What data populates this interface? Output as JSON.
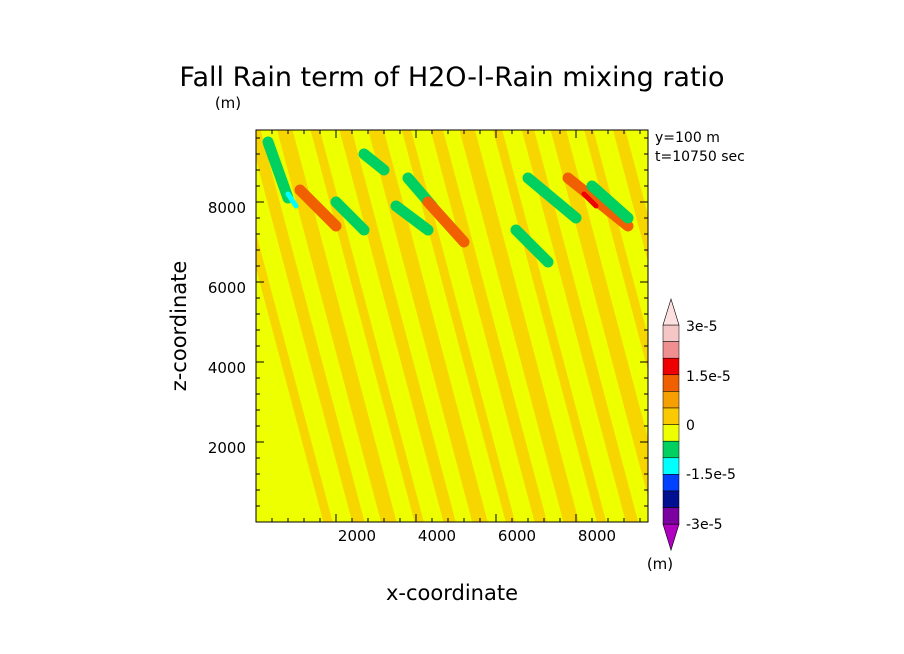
{
  "chart_data": {
    "type": "heatmap",
    "title": "Fall Rain term of H2O-l-Rain mixing ratio",
    "unit_label_top": "(m)",
    "unit_label_colorbar": "(m)",
    "annotations": [
      "y=100 m",
      "t=10750 sec"
    ],
    "xlabel": "x-coordinate",
    "ylabel": "z-coordinate",
    "x_ticks": [
      "2000",
      "4000",
      "6000",
      "8000"
    ],
    "y_ticks": [
      "2000",
      "4000",
      "6000",
      "8000"
    ],
    "xlim": [
      0,
      9800
    ],
    "ylim": [
      0,
      9800
    ],
    "grid": false,
    "background_color": "#eeff00",
    "colorbar": {
      "levels_labels": [
        "3e-5",
        "1.5e-5",
        "0",
        "-1.5e-5",
        "-3e-5"
      ],
      "colors": [
        "#f5c6c6",
        "#ef8f8f",
        "#ee0000",
        "#f06000",
        "#f5a000",
        "#fbc900",
        "#eeff00",
        "#00d060",
        "#00ffff",
        "#0040ff",
        "#001090",
        "#7a00a0"
      ]
    },
    "features": [
      {
        "x": 300,
        "z": 9500,
        "x2": 800,
        "z2": 8100,
        "value": -1e-05
      },
      {
        "x": 800,
        "z": 8200,
        "x2": 1000,
        "z2": 7900,
        "value": -2e-05
      },
      {
        "x": 1100,
        "z": 8300,
        "x2": 2000,
        "z2": 7400,
        "value": 1e-05
      },
      {
        "x": 2000,
        "z": 8000,
        "x2": 2700,
        "z2": 7300,
        "value": -1e-05
      },
      {
        "x": 2700,
        "z": 9200,
        "x2": 3200,
        "z2": 8800,
        "value": -1e-05
      },
      {
        "x": 3500,
        "z": 7900,
        "x2": 4300,
        "z2": 7300,
        "value": -1e-05
      },
      {
        "x": 3800,
        "z": 8600,
        "x2": 4400,
        "z2": 7900,
        "value": -1e-05
      },
      {
        "x": 4300,
        "z": 8000,
        "x2": 5200,
        "z2": 7000,
        "value": 1e-05
      },
      {
        "x": 6800,
        "z": 8600,
        "x2": 8000,
        "z2": 7600,
        "value": -1e-05
      },
      {
        "x": 6500,
        "z": 7300,
        "x2": 7300,
        "z2": 6500,
        "value": -1e-05
      },
      {
        "x": 7800,
        "z": 8600,
        "x2": 9300,
        "z2": 7400,
        "value": 1.5e-05
      },
      {
        "x": 8400,
        "z": 8400,
        "x2": 9300,
        "z2": 7600,
        "value": -1.5e-05
      },
      {
        "x": 8200,
        "z": 8200,
        "x2": 8500,
        "z2": 7900,
        "value": 2.5e-05
      }
    ]
  }
}
